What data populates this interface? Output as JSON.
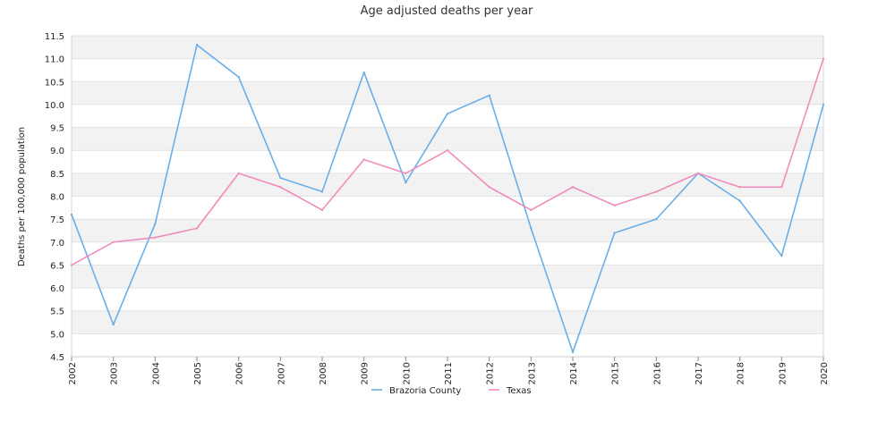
{
  "chart_data": {
    "type": "line",
    "title": "Age adjusted deaths per year",
    "xlabel": "",
    "ylabel": "Deaths per 100,000 population",
    "x": [
      "2002",
      "2003",
      "2004",
      "2005",
      "2006",
      "2007",
      "2008",
      "2009",
      "2010",
      "2011",
      "2012",
      "2013",
      "2014",
      "2015",
      "2016",
      "2017",
      "2018",
      "2019",
      "2020"
    ],
    "ylim": [
      4.5,
      11.5
    ],
    "yticks": [
      "4.5",
      "5.0",
      "5.5",
      "6.0",
      "6.5",
      "7.0",
      "7.5",
      "8.0",
      "8.5",
      "9.0",
      "9.5",
      "10.0",
      "10.5",
      "11.0",
      "11.5"
    ],
    "grid": "horizontal alternating bands",
    "legend_position": "bottom-center",
    "series": [
      {
        "name": "Brazoria County",
        "color": "#6aaee8",
        "values": [
          7.6,
          5.2,
          7.4,
          11.3,
          10.6,
          8.4,
          8.1,
          10.7,
          8.3,
          9.8,
          10.2,
          7.3,
          4.6,
          7.2,
          7.5,
          8.5,
          7.9,
          6.7,
          10.0
        ]
      },
      {
        "name": "Texas",
        "color": "#f08cbc",
        "values": [
          6.5,
          7.0,
          7.1,
          7.3,
          8.5,
          8.2,
          7.7,
          8.8,
          8.5,
          9.0,
          8.2,
          7.7,
          8.2,
          7.8,
          8.1,
          8.5,
          8.2,
          8.2,
          11.0
        ]
      }
    ]
  }
}
